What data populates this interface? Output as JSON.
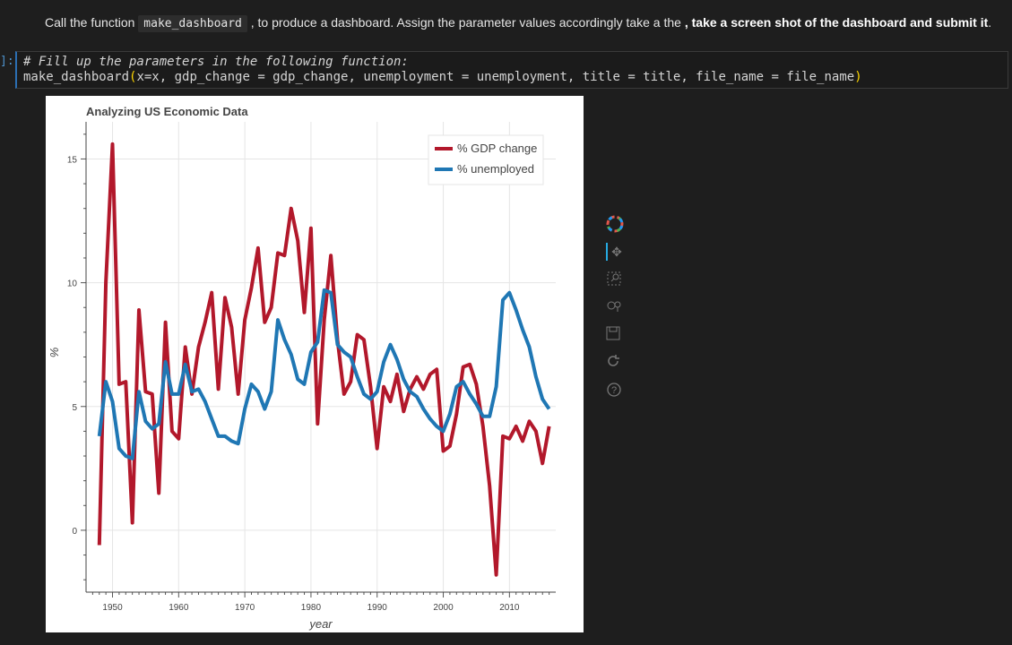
{
  "markdown": {
    "prefix": "Call the function ",
    "code": "make_dashboard",
    "middle": " , to produce a dashboard. Assign the parameter values accordingly take a the ",
    "bold": ", take a screen shot of the dashboard and submit it",
    "suffix": "."
  },
  "cell": {
    "prompt": "]:",
    "comment": "# Fill up the parameters in the following function:",
    "code_fn": "make_dashboard",
    "code_args": "x=x, gdp_change = gdp_change, unemployment = unemployment, title = title, file_name = file_name"
  },
  "toolbar": {
    "logo": "bokeh-logo-icon",
    "tools": [
      "pan-icon",
      "box-zoom-icon",
      "wheel-zoom-icon",
      "save-icon",
      "reset-icon",
      "help-icon"
    ]
  },
  "chart_data": {
    "type": "line",
    "title": "Analyzing US Economic Data",
    "xlabel": "year",
    "ylabel": "%",
    "xlim": [
      1946,
      2017
    ],
    "ylim": [
      -2.5,
      16.5
    ],
    "xticks": [
      "1950",
      "1960",
      "1970",
      "1980",
      "1990",
      "2000",
      "2010"
    ],
    "yticks": [
      "0",
      "5",
      "10",
      "15"
    ],
    "grid": true,
    "legend_position": "top-right",
    "x": [
      1948,
      1949,
      1950,
      1951,
      1952,
      1953,
      1954,
      1955,
      1956,
      1957,
      1958,
      1959,
      1960,
      1961,
      1962,
      1963,
      1964,
      1965,
      1966,
      1967,
      1968,
      1969,
      1970,
      1971,
      1972,
      1973,
      1974,
      1975,
      1976,
      1977,
      1978,
      1979,
      1980,
      1981,
      1982,
      1983,
      1984,
      1985,
      1986,
      1987,
      1988,
      1989,
      1990,
      1991,
      1992,
      1993,
      1994,
      1995,
      1996,
      1997,
      1998,
      1999,
      2000,
      2001,
      2002,
      2003,
      2004,
      2005,
      2006,
      2007,
      2008,
      2009,
      2010,
      2011,
      2012,
      2013,
      2014,
      2015,
      2016
    ],
    "series": [
      {
        "name": "% GDP change",
        "color": "#b2182b",
        "values": [
          -0.6,
          10.0,
          15.6,
          5.9,
          6.0,
          0.3,
          8.9,
          5.6,
          5.5,
          1.5,
          8.4,
          4.0,
          3.7,
          7.4,
          5.5,
          7.4,
          8.4,
          9.6,
          5.7,
          9.4,
          8.2,
          5.5,
          8.5,
          9.8,
          11.4,
          8.4,
          9.0,
          11.2,
          11.1,
          13.0,
          11.7,
          8.8,
          12.2,
          4.3,
          8.5,
          11.1,
          7.7,
          5.5,
          6.0,
          7.9,
          7.7,
          5.8,
          3.3,
          5.8,
          5.2,
          6.3,
          4.8,
          5.7,
          6.2,
          5.7,
          6.3,
          6.5,
          3.2,
          3.4,
          4.7,
          6.6,
          6.7,
          5.9,
          4.2,
          1.8,
          -1.8,
          3.8,
          3.7,
          4.2,
          3.6,
          4.4,
          4.0,
          2.7,
          4.2
        ]
      },
      {
        "name": "% unemployed",
        "color": "#1f77b4",
        "values": [
          3.8,
          6.0,
          5.2,
          3.3,
          3.0,
          2.9,
          5.6,
          4.4,
          4.1,
          4.3,
          6.8,
          5.5,
          5.5,
          6.7,
          5.6,
          5.7,
          5.2,
          4.5,
          3.8,
          3.8,
          3.6,
          3.5,
          4.9,
          5.9,
          5.6,
          4.9,
          5.6,
          8.5,
          7.7,
          7.1,
          6.1,
          5.9,
          7.2,
          7.6,
          9.7,
          9.6,
          7.5,
          7.2,
          7.0,
          6.2,
          5.5,
          5.3,
          5.6,
          6.8,
          7.5,
          6.9,
          6.1,
          5.6,
          5.4,
          4.9,
          4.5,
          4.2,
          4.0,
          4.7,
          5.8,
          6.0,
          5.5,
          5.1,
          4.6,
          4.6,
          5.8,
          9.3,
          9.6,
          8.9,
          8.1,
          7.4,
          6.2,
          5.3,
          4.9
        ]
      }
    ]
  }
}
